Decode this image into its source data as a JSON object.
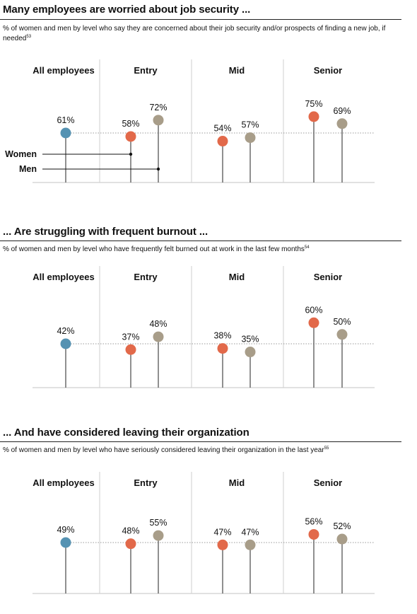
{
  "panels": [
    {
      "title": "Many employees are worried about job security ...",
      "subtitle": "% of women and men by level who say they are concerned about their job security and/or prospects of finding a new job, if needed",
      "footnote": "53",
      "legend": {
        "women": "Women",
        "men": "Men"
      },
      "chart_data": {
        "type": "lollipop",
        "groups": [
          "All employees",
          "Entry",
          "Mid",
          "Senior"
        ],
        "all_employees": {
          "value": 61,
          "label": "61%"
        },
        "series": [
          {
            "name": "Women",
            "values": [
              58,
              54,
              75
            ],
            "labels": [
              "58%",
              "54%",
              "75%"
            ]
          },
          {
            "name": "Men",
            "values": [
              72,
              57,
              69
            ],
            "labels": [
              "72%",
              "57%",
              "69%"
            ]
          }
        ],
        "reference_line": 61
      }
    },
    {
      "title": "... Are struggling with frequent burnout ...",
      "subtitle": "% of women and men by level who have frequently felt burned out at work in the last few months",
      "footnote": "54",
      "chart_data": {
        "type": "lollipop",
        "groups": [
          "All employees",
          "Entry",
          "Mid",
          "Senior"
        ],
        "all_employees": {
          "value": 42,
          "label": "42%"
        },
        "series": [
          {
            "name": "Women",
            "values": [
              37,
              38,
              60
            ],
            "labels": [
              "37%",
              "38%",
              "60%"
            ]
          },
          {
            "name": "Men",
            "values": [
              48,
              35,
              50
            ],
            "labels": [
              "48%",
              "35%",
              "50%"
            ]
          }
        ],
        "reference_line": 42
      }
    },
    {
      "title": "... And have considered leaving their organization",
      "subtitle": "% of women and men by level who have seriously considered leaving their organization in the last year",
      "footnote": "55",
      "chart_data": {
        "type": "lollipop",
        "groups": [
          "All employees",
          "Entry",
          "Mid",
          "Senior"
        ],
        "all_employees": {
          "value": 49,
          "label": "49%"
        },
        "series": [
          {
            "name": "Women",
            "values": [
              48,
              47,
              56
            ],
            "labels": [
              "48%",
              "47%",
              "56%"
            ]
          },
          {
            "name": "Men",
            "values": [
              55,
              47,
              52
            ],
            "labels": [
              "55%",
              "47%",
              "52%"
            ]
          }
        ],
        "reference_line": 49
      }
    }
  ],
  "colors": {
    "all": "#5592b2",
    "women": "#e2694a",
    "men": "#a89d89",
    "stem": "#555555",
    "grid": "#cfcfcf",
    "dots": "#9a9a9a"
  }
}
